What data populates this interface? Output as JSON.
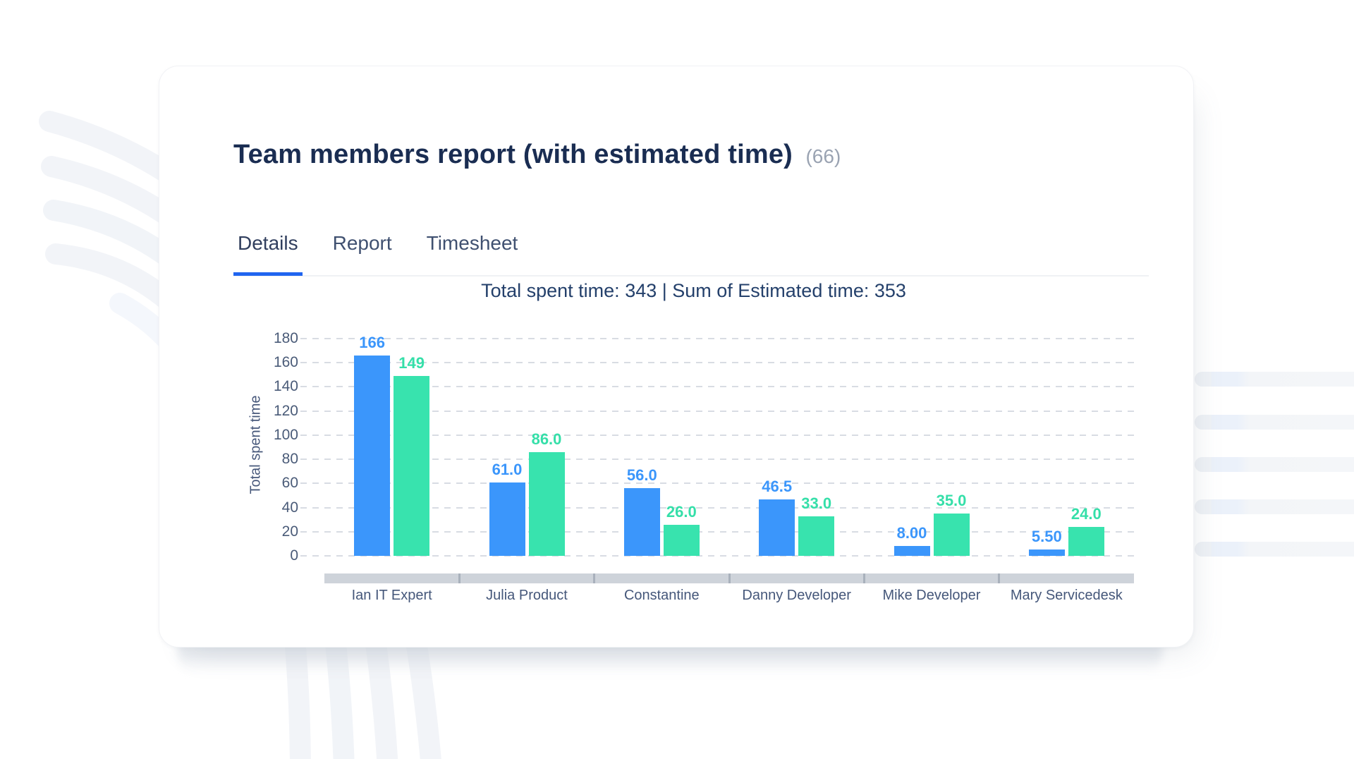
{
  "page": {
    "title": "Team members report (with estimated time)",
    "count_badge": "(66)"
  },
  "tabs": [
    {
      "label": "Details",
      "active": true
    },
    {
      "label": "Report",
      "active": false
    },
    {
      "label": "Timesheet",
      "active": false
    }
  ],
  "summary": "Total spent time: 343 | Sum of Estimated time: 353",
  "totals": {
    "total_spent_time": 343,
    "sum_estimated_time": 353
  },
  "colors": {
    "accent_blue": "#2065f0",
    "bar_spent_blue": "#3b96fb",
    "bar_estimated_green": "#38e3ae",
    "title_navy": "#1a2d52",
    "scrollbar_gray": "#ced3da"
  },
  "chart_data": {
    "type": "bar",
    "title": "Total spent time: 343 | Sum of Estimated time: 353",
    "xlabel": "",
    "ylabel": "Total spent time",
    "ylim": [
      0,
      180
    ],
    "yticks": [
      0,
      20,
      40,
      60,
      80,
      100,
      120,
      140,
      160,
      180
    ],
    "grid": "horizontal-dashed",
    "legend_position": "none",
    "categories": [
      "Ian IT Expert",
      "Julia Product",
      "Constantine",
      "Danny Developer",
      "Mike Developer",
      "Mary Servicedesk"
    ],
    "series": [
      {
        "name": "Total spent time",
        "color": "#3b96fb",
        "values": [
          166,
          61.0,
          56.0,
          46.5,
          8.0,
          5.5
        ],
        "labels": [
          "166",
          "61.0",
          "56.0",
          "46.5",
          "8.00",
          "5.50"
        ]
      },
      {
        "name": "Estimated time",
        "color": "#38e3ae",
        "label_color": "#35dfa9",
        "values": [
          149,
          86.0,
          26.0,
          33.0,
          35.0,
          24.0
        ],
        "labels": [
          "149",
          "86.0",
          "26.0",
          "33.0",
          "35.0",
          "24.0"
        ]
      }
    ]
  }
}
